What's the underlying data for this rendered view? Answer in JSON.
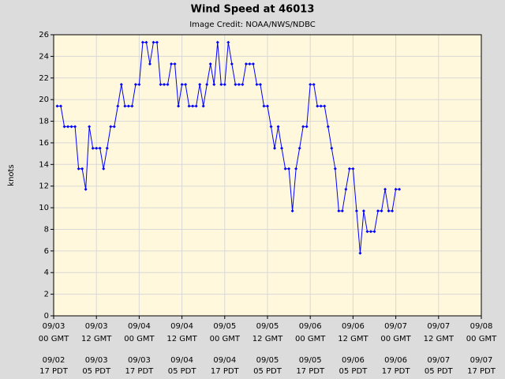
{
  "chart_data": {
    "type": "line",
    "title": "Wind Speed at 46013",
    "subtitle": "Image Credit: NOAA/NWS/NDBC",
    "y_label": "knots",
    "grid": true,
    "xlim": [
      0,
      120
    ],
    "ylim": [
      0,
      26
    ],
    "yticks": [
      0,
      2,
      4,
      6,
      8,
      10,
      12,
      14,
      16,
      18,
      20,
      22,
      24,
      26
    ],
    "xticks": [
      {
        "value": 0,
        "label": [
          "09/03",
          "00 GMT"
        ],
        "label2": [
          "09/02",
          "17 PDT"
        ]
      },
      {
        "value": 12,
        "label": [
          "09/03",
          "12 GMT"
        ],
        "label2": [
          "09/03",
          "05 PDT"
        ]
      },
      {
        "value": 24,
        "label": [
          "09/04",
          "00 GMT"
        ],
        "label2": [
          "09/03",
          "17 PDT"
        ]
      },
      {
        "value": 36,
        "label": [
          "09/04",
          "12 GMT"
        ],
        "label2": [
          "09/04",
          "05 PDT"
        ]
      },
      {
        "value": 48,
        "label": [
          "09/05",
          "00 GMT"
        ],
        "label2": [
          "09/04",
          "17 PDT"
        ]
      },
      {
        "value": 60,
        "label": [
          "09/05",
          "12 GMT"
        ],
        "label2": [
          "09/05",
          "05 PDT"
        ]
      },
      {
        "value": 72,
        "label": [
          "09/06",
          "00 GMT"
        ],
        "label2": [
          "09/05",
          "17 PDT"
        ]
      },
      {
        "value": 84,
        "label": [
          "09/06",
          "12 GMT"
        ],
        "label2": [
          "09/06",
          "05 PDT"
        ]
      },
      {
        "value": 96,
        "label": [
          "09/07",
          "00 GMT"
        ],
        "label2": [
          "09/06",
          "17 PDT"
        ]
      },
      {
        "value": 108,
        "label": [
          "09/07",
          "12 GMT"
        ],
        "label2": [
          "09/07",
          "05 PDT"
        ]
      },
      {
        "value": 120,
        "label": [
          "09/08",
          "00 GMT"
        ],
        "label2": [
          "09/07",
          "17 PDT"
        ]
      }
    ],
    "x": [
      1,
      2,
      3,
      4,
      5,
      6,
      7,
      8,
      9,
      10,
      11,
      12,
      13,
      14,
      15,
      16,
      17,
      18,
      19,
      20,
      21,
      22,
      23,
      24,
      25,
      26,
      27,
      28,
      29,
      30,
      31,
      32,
      33,
      34,
      35,
      36,
      37,
      38,
      39,
      40,
      41,
      42,
      43,
      44,
      45,
      46,
      47,
      48,
      49,
      50,
      51,
      52,
      53,
      54,
      55,
      56,
      57,
      58,
      59,
      60,
      61,
      62,
      63,
      64,
      65,
      66,
      67,
      68,
      69,
      70,
      71,
      72,
      73,
      74,
      75,
      76,
      77,
      78,
      79,
      80,
      81,
      82,
      83,
      84,
      85,
      86,
      87,
      88,
      89,
      90,
      91,
      92,
      93,
      94,
      95,
      96,
      97
    ],
    "series": [
      {
        "color": "#0000ff",
        "values": [
          19.4,
          19.4,
          17.5,
          17.5,
          17.5,
          17.5,
          13.6,
          13.6,
          11.7,
          17.5,
          15.5,
          15.5,
          15.5,
          13.6,
          15.5,
          17.5,
          17.5,
          19.4,
          21.4,
          19.4,
          19.4,
          19.4,
          21.4,
          21.4,
          25.3,
          25.3,
          23.3,
          25.3,
          25.3,
          21.4,
          21.4,
          21.4,
          23.3,
          23.3,
          19.4,
          21.4,
          21.4,
          19.4,
          19.4,
          19.4,
          21.4,
          19.4,
          21.4,
          23.3,
          21.4,
          25.3,
          21.4,
          21.4,
          25.3,
          23.3,
          21.4,
          21.4,
          21.4,
          23.3,
          23.3,
          23.3,
          21.4,
          21.4,
          19.4,
          19.4,
          17.5,
          15.5,
          17.5,
          15.5,
          13.6,
          13.6,
          9.7,
          13.6,
          15.5,
          17.5,
          17.5,
          21.4,
          21.4,
          19.4,
          19.4,
          19.4,
          17.5,
          15.5,
          13.6,
          9.7,
          9.7,
          11.7,
          13.6,
          13.6,
          9.7,
          5.8,
          9.7,
          7.8,
          7.8,
          7.8,
          9.7,
          9.7,
          11.7,
          9.7,
          9.7,
          11.7,
          11.7
        ]
      }
    ]
  }
}
